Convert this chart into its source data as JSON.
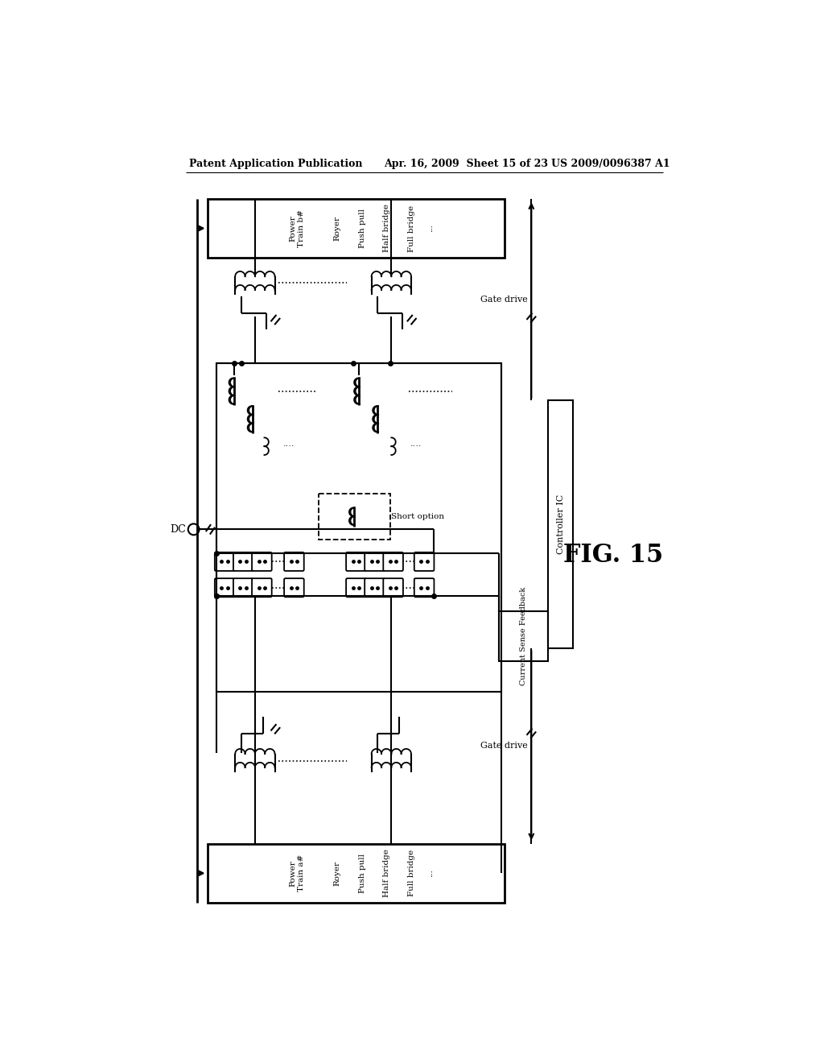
{
  "header_left": "Patent Application Publication",
  "header_center": "Apr. 16, 2009  Sheet 15 of 23",
  "header_right": "US 2009/0096387 A1",
  "fig_label": "FIG. 15",
  "controller_ic_text": "Controller IC",
  "current_sense_text": "Current Sense Feedback",
  "gate_drive_top": "Gate drive",
  "gate_drive_bottom": "Gate drive",
  "dc_label": "DC",
  "short_option_label": "Short option",
  "bg_color": "#ffffff",
  "line_color": "#000000"
}
